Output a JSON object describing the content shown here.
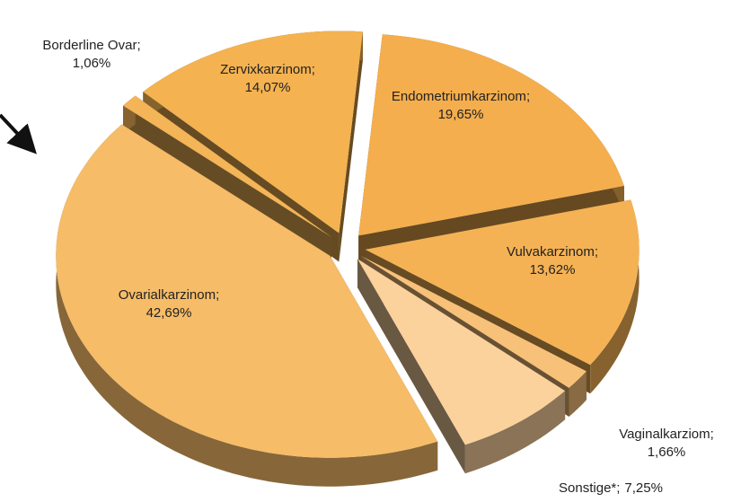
{
  "chart_data": {
    "type": "pie3d",
    "categories": [
      "Endometriumkarzinom",
      "Vulvakarzinom",
      "Vaginalkarziom",
      "Sonstige*",
      "Ovarialkarzinom",
      "Borderline Ovar",
      "Zervixkarzinom"
    ],
    "values": [
      19.65,
      13.62,
      1.66,
      7.25,
      42.69,
      1.06,
      14.07
    ],
    "value_labels": [
      "19,65%",
      "13,62%",
      "1,66%",
      "7,25%",
      "42,69%",
      "1,06%",
      "14,07%"
    ],
    "label_separator": ";",
    "colors": [
      "#f4ae4e",
      "#f5b254",
      "#f7c17a",
      "#fbd19c",
      "#f6bc68",
      "#f4b458",
      "#f4b250"
    ]
  }
}
